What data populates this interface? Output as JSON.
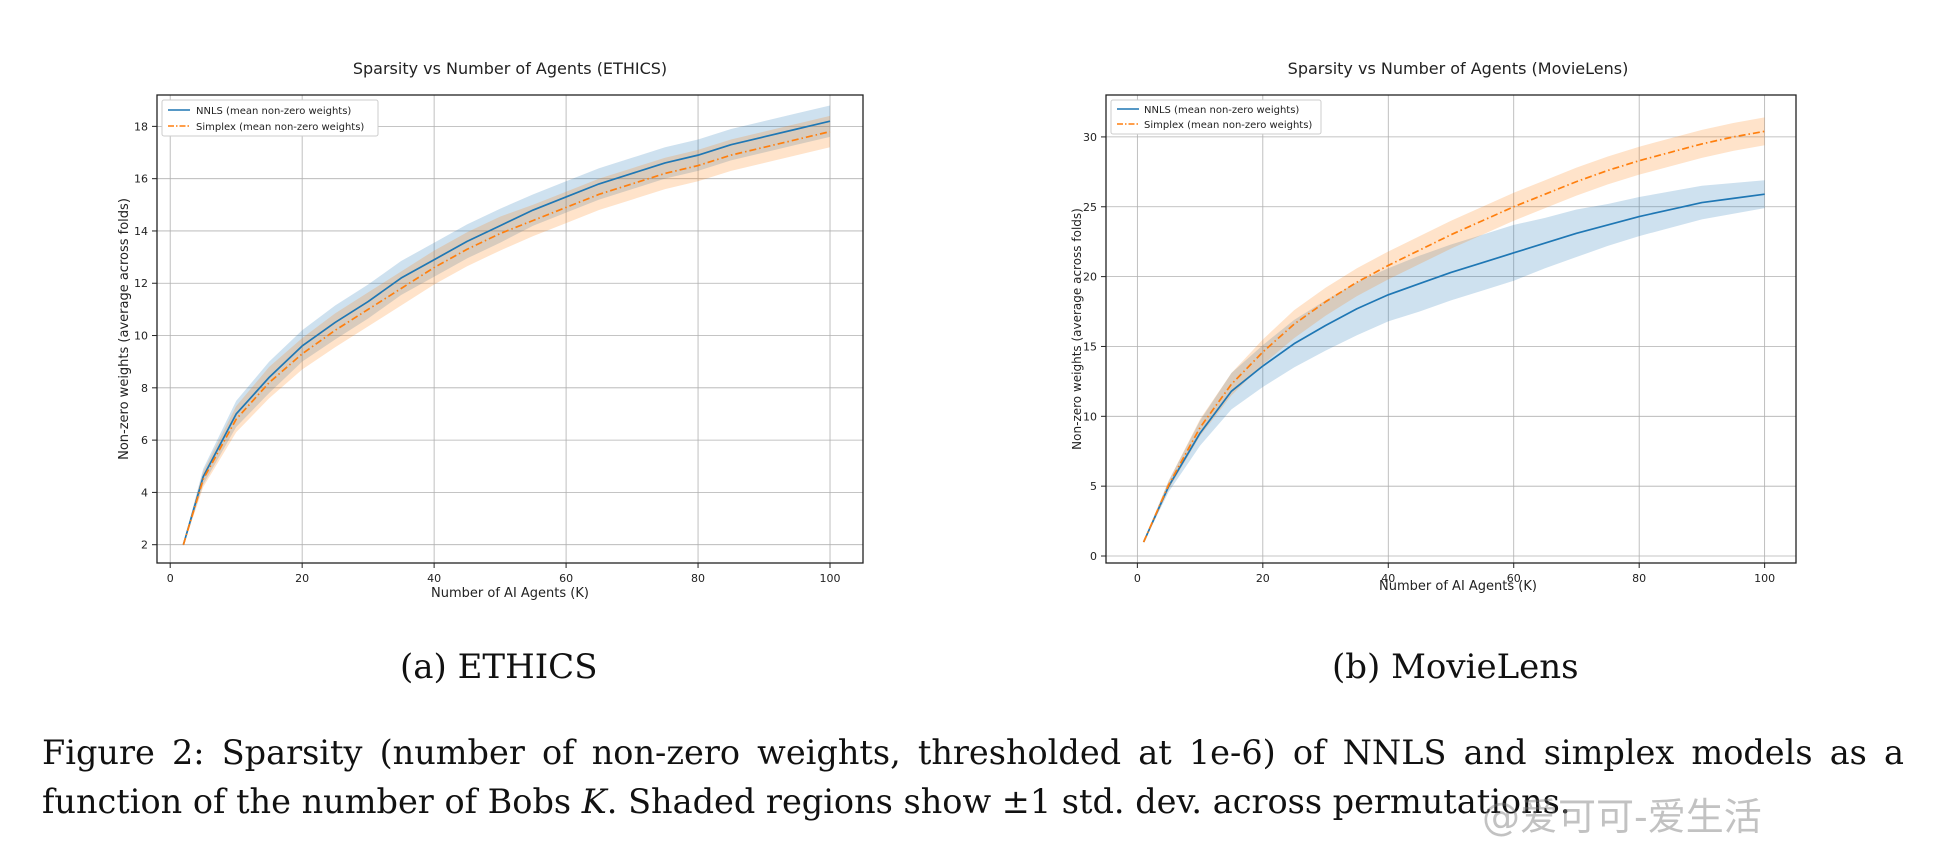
{
  "chart_data": [
    {
      "type": "line",
      "title": "Sparsity vs Number of Agents (ETHICS)",
      "xlabel": "Number of AI Agents (K)",
      "ylabel": "Non-zero weights (average across folds)",
      "xlim": [
        -2,
        105
      ],
      "ylim": [
        1.3,
        19.2
      ],
      "xticks": [
        0,
        20,
        40,
        60,
        80,
        100
      ],
      "yticks": [
        2,
        4,
        6,
        8,
        10,
        12,
        14,
        16,
        18
      ],
      "grid": true,
      "legend_position": "top-left",
      "x": [
        2,
        5,
        10,
        15,
        20,
        25,
        30,
        35,
        40,
        45,
        50,
        55,
        60,
        65,
        70,
        75,
        80,
        85,
        90,
        95,
        100
      ],
      "series": [
        {
          "name": "NNLS (mean non-zero weights)",
          "color": "#1f77b4",
          "style": "solid",
          "values": [
            2.0,
            4.6,
            7.0,
            8.4,
            9.6,
            10.5,
            11.3,
            12.2,
            12.9,
            13.6,
            14.2,
            14.8,
            15.3,
            15.8,
            16.2,
            16.6,
            16.9,
            17.3,
            17.6,
            17.9,
            18.2
          ],
          "std": [
            0.05,
            0.3,
            0.5,
            0.6,
            0.6,
            0.65,
            0.65,
            0.65,
            0.65,
            0.65,
            0.65,
            0.6,
            0.6,
            0.6,
            0.6,
            0.6,
            0.6,
            0.6,
            0.6,
            0.6,
            0.6
          ]
        },
        {
          "name": "Simplex (mean non-zero weights)",
          "color": "#ff7f0e",
          "style": "dashdot",
          "values": [
            2.0,
            4.5,
            6.8,
            8.2,
            9.3,
            10.2,
            11.0,
            11.8,
            12.6,
            13.3,
            13.9,
            14.4,
            14.9,
            15.4,
            15.8,
            16.2,
            16.5,
            16.9,
            17.2,
            17.5,
            17.8
          ],
          "std": [
            0.05,
            0.3,
            0.5,
            0.6,
            0.6,
            0.65,
            0.65,
            0.65,
            0.65,
            0.65,
            0.65,
            0.6,
            0.6,
            0.6,
            0.6,
            0.6,
            0.6,
            0.6,
            0.6,
            0.6,
            0.6
          ]
        }
      ]
    },
    {
      "type": "line",
      "title": "Sparsity vs Number of Agents (MovieLens)",
      "xlabel": "Number of AI Agents (K)",
      "ylabel": "Non-zero weights (average across folds)",
      "xlim": [
        -5,
        105
      ],
      "ylim": [
        -0.5,
        33
      ],
      "xticks": [
        0,
        20,
        40,
        60,
        80,
        100
      ],
      "yticks": [
        0,
        5,
        10,
        15,
        20,
        25,
        30
      ],
      "grid": true,
      "legend_position": "top-left",
      "x": [
        1,
        5,
        10,
        15,
        20,
        25,
        30,
        35,
        40,
        45,
        50,
        55,
        60,
        65,
        70,
        75,
        80,
        85,
        90,
        95,
        100
      ],
      "series": [
        {
          "name": "NNLS (mean non-zero weights)",
          "color": "#1f77b4",
          "style": "solid",
          "values": [
            1.0,
            5.0,
            8.8,
            11.8,
            13.6,
            15.2,
            16.5,
            17.7,
            18.7,
            19.5,
            20.3,
            21.0,
            21.7,
            22.4,
            23.1,
            23.7,
            24.3,
            24.8,
            25.3,
            25.6,
            25.9
          ],
          "std": [
            0.05,
            0.4,
            0.9,
            1.3,
            1.5,
            1.7,
            1.8,
            1.9,
            1.9,
            2.0,
            2.0,
            2.0,
            2.0,
            1.8,
            1.7,
            1.5,
            1.4,
            1.3,
            1.2,
            1.1,
            1.0
          ]
        },
        {
          "name": "Simplex (mean non-zero weights)",
          "color": "#ff7f0e",
          "style": "dashdot",
          "values": [
            1.0,
            5.1,
            9.2,
            12.3,
            14.6,
            16.6,
            18.2,
            19.6,
            20.8,
            21.9,
            23.0,
            24.0,
            25.0,
            25.9,
            26.8,
            27.6,
            28.3,
            28.9,
            29.5,
            30.0,
            30.4
          ],
          "std": [
            0.05,
            0.3,
            0.6,
            0.8,
            0.9,
            1.0,
            1.0,
            1.0,
            1.0,
            1.0,
            1.0,
            1.0,
            1.0,
            1.0,
            1.0,
            1.0,
            1.0,
            1.0,
            1.0,
            1.0,
            1.0
          ]
        }
      ]
    }
  ],
  "sub_captions": {
    "a": "(a) ETHICS",
    "b": "(b) MovieLens"
  },
  "caption": {
    "line1": "Figure 2: Sparsity (number of non-zero weights, thresholded at 1e-6) of NNLS and simplex models as a",
    "line2": "function of the number of Bobs 𝐾. Shaded regions show ±1 std. dev. across permutations."
  },
  "watermark": "@爱可可-爱生活"
}
